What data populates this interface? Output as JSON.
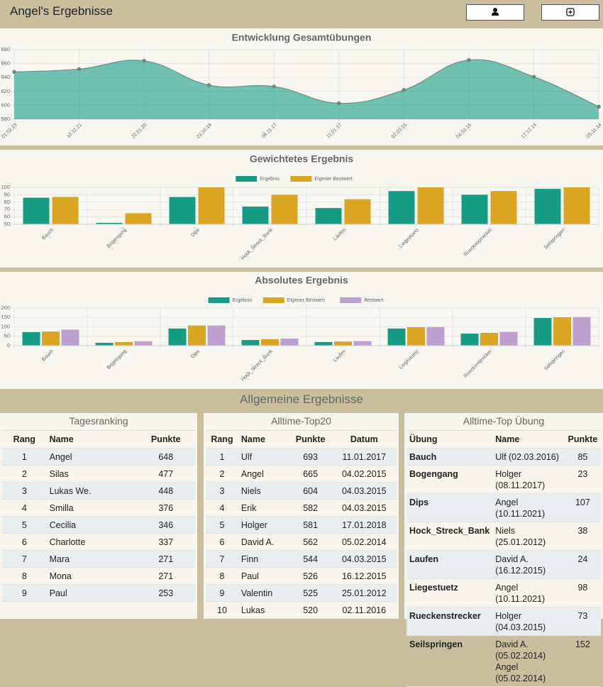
{
  "header": {
    "title": "Angel's Ergebnisse"
  },
  "chart_data": [
    {
      "type": "area",
      "title": "Entwicklung Gesamtübungen",
      "categories": [
        "01.02.23",
        "10.11.21",
        "22.01.20",
        "23.10.19",
        "08.11.17",
        "11.01.17",
        "02.03.16",
        "04.02.15",
        "17.12.14",
        "05.11.14"
      ],
      "values": [
        648,
        652,
        664,
        629,
        627,
        603,
        622,
        665,
        641,
        598
      ],
      "color": "#179c84",
      "ylim": [
        580,
        680
      ],
      "yticks": [
        580,
        600,
        620,
        640,
        660,
        680
      ],
      "grid": true
    },
    {
      "type": "bar",
      "title": "Gewichtetes Ergebnis",
      "categories": [
        "Bauch",
        "Bogengang",
        "Dips",
        "Hock_Streck_Bank",
        "Laufen",
        "Liegestuetz",
        "Rueckenstrecker",
        "Seilspringen"
      ],
      "series": [
        {
          "name": "Ergebnis",
          "color": "#179c84",
          "values": [
            86,
            52,
            87,
            74,
            72,
            95,
            90,
            98
          ]
        },
        {
          "name": "Eigener Bestwert",
          "color": "#daa520",
          "values": [
            87,
            65,
            100,
            90,
            84,
            100,
            95,
            100
          ]
        }
      ],
      "ylim": [
        50,
        100
      ],
      "yticks": [
        50,
        60,
        70,
        80,
        90,
        100
      ],
      "grid": true,
      "legend": "top"
    },
    {
      "type": "bar",
      "title": "Absolutes Ergebnis",
      "categories": [
        "Bauch",
        "Bogengang",
        "Dips",
        "Hock_Streck_Bank",
        "Laufen",
        "Liegestuetz",
        "Rueckenstrecker",
        "Seilspringen"
      ],
      "series": [
        {
          "name": "Ergebnis",
          "color": "#179c84",
          "values": [
            72,
            15,
            91,
            30,
            19,
            91,
            64,
            147
          ]
        },
        {
          "name": "Eigener Bestwert",
          "color": "#daa520",
          "values": [
            75,
            19,
            107,
            34,
            22,
            98,
            68,
            151
          ]
        },
        {
          "name": "Bestwert",
          "color": "#bf9fd0",
          "values": [
            85,
            23,
            107,
            38,
            24,
            98,
            73,
            152
          ]
        }
      ],
      "ylim": [
        0,
        200
      ],
      "yticks": [
        0,
        50,
        100,
        150,
        200
      ],
      "grid": true,
      "legend": "top"
    }
  ],
  "section_title": "Allgemeine Ergebnisse",
  "tables": [
    {
      "title": "Tagesranking",
      "columns": [
        "Rang",
        "Name",
        "Punkte"
      ],
      "rows": [
        [
          1,
          "Angel",
          648
        ],
        [
          2,
          "Silas",
          477
        ],
        [
          3,
          "Lukas We.",
          448
        ],
        [
          4,
          "Smilla",
          376
        ],
        [
          5,
          "Cecilia",
          346
        ],
        [
          6,
          "Charlotte",
          337
        ],
        [
          7,
          "Mara",
          271
        ],
        [
          8,
          "Mona",
          271
        ],
        [
          9,
          "Paul",
          253
        ]
      ]
    },
    {
      "title": "Alltime-Top20",
      "columns": [
        "Rang",
        "Name",
        "Punkte",
        "Datum"
      ],
      "rows": [
        [
          1,
          "Ulf",
          693,
          "11.01.2017"
        ],
        [
          2,
          "Angel",
          665,
          "04.02.2015"
        ],
        [
          3,
          "Niels",
          604,
          "04.03.2015"
        ],
        [
          4,
          "Erik",
          582,
          "04.03.2015"
        ],
        [
          5,
          "Holger",
          581,
          "17.01.2018"
        ],
        [
          6,
          "David A.",
          562,
          "05.02.2014"
        ],
        [
          7,
          "Finn",
          544,
          "04.03.2015"
        ],
        [
          8,
          "Paul",
          526,
          "16.12.2015"
        ],
        [
          9,
          "Valentin",
          525,
          "25.01.2012"
        ],
        [
          10,
          "Lukas",
          520,
          "02.11.2016"
        ]
      ]
    },
    {
      "title": "Alltime-Top Übung",
      "columns": [
        "Übung",
        "Name",
        "Punkte"
      ],
      "rows": [
        [
          "Bauch",
          "Ulf (02.03.2016)",
          85
        ],
        [
          "Bogengang",
          "Holger (08.11.2017)",
          23
        ],
        [
          "Dips",
          "Angel (10.11.2021)",
          107
        ],
        [
          "Hock_Streck_Bank",
          "Niels (25.01.2012)",
          38
        ],
        [
          "Laufen",
          "David A. (16.12.2015)",
          24
        ],
        [
          "Liegestuetz",
          "Angel (10.11.2021)",
          98
        ],
        [
          "Rueckenstrecker",
          "Holger (04.03.2015)",
          73
        ],
        [
          "Seilspringen",
          "David A. (05.02.2014) Angel (05.02.2014)",
          152
        ]
      ]
    }
  ]
}
